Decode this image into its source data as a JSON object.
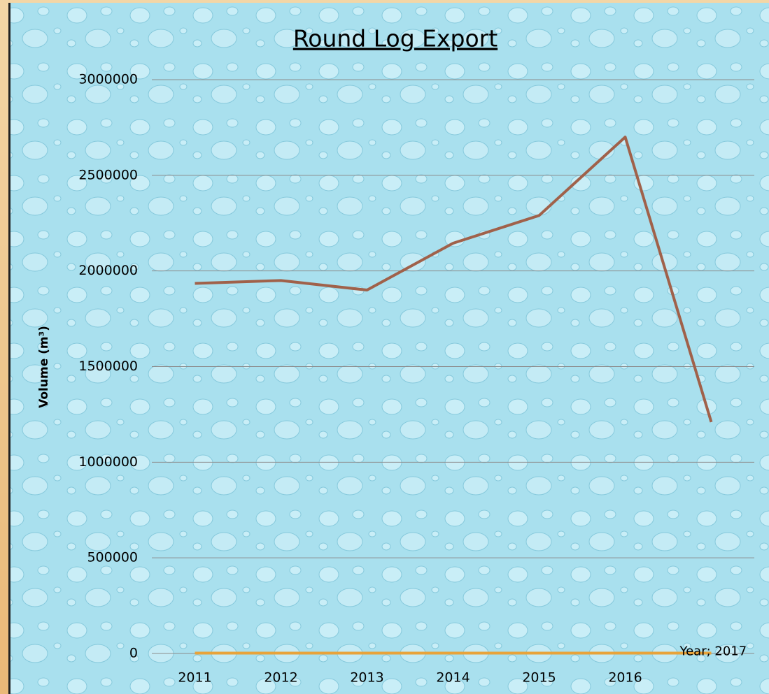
{
  "chart_data": {
    "type": "line",
    "title": "Round Log Export",
    "y_label": "Volume (m³)",
    "categories": [
      "2011",
      "2012",
      "2013",
      "2014",
      "2015",
      "2016",
      null
    ],
    "series": [
      {
        "color": "#a0614a",
        "values": [
          1935000,
          1950000,
          1900000,
          2145000,
          2290000,
          2700000,
          1210000
        ]
      },
      {
        "name": "Year",
        "color": "#e8a33a",
        "values": [
          2011,
          2012,
          2013,
          2014,
          2015,
          2016,
          2017
        ],
        "value_labels": [
          null,
          null,
          null,
          null,
          null,
          null,
          "Year; 2017"
        ]
      }
    ],
    "ylim": [
      0,
      3000000
    ],
    "yticks": [
      0,
      500000,
      1000000,
      1500000,
      2000000,
      2500000,
      3000000
    ],
    "grid": true
  }
}
